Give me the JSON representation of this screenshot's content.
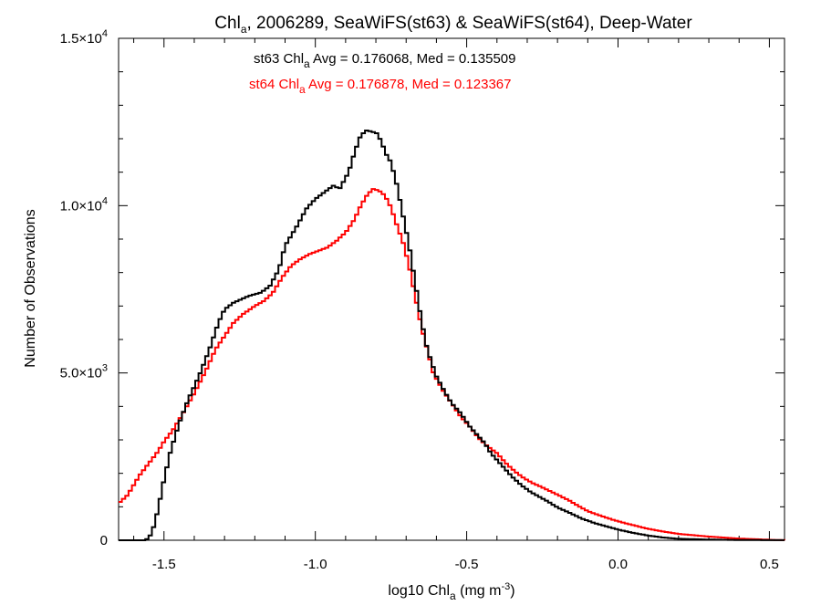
{
  "chart_data": {
    "type": "line",
    "title_parts": [
      "Chl",
      "a",
      ", 2006289, SeaWiFS(st63) & SeaWiFS(st64), Deep-Water"
    ],
    "xlabel_parts": [
      "log10 Chl",
      "a",
      " (mg m",
      "-3",
      ")"
    ],
    "ylabel": "Number of Observations",
    "xlim": [
      -1.65,
      0.55
    ],
    "ylim": [
      0,
      15000
    ],
    "x_ticks": [
      {
        "value": -1.5,
        "label": "-1.5"
      },
      {
        "value": -1.0,
        "label": "-1.0"
      },
      {
        "value": -0.5,
        "label": "-0.5"
      },
      {
        "value": 0.0,
        "label": "0.0"
      },
      {
        "value": 0.5,
        "label": "0.5"
      }
    ],
    "y_ticks": [
      {
        "value": 0,
        "mant": "0",
        "exp": ""
      },
      {
        "value": 5000,
        "mant": "5.0×10",
        "exp": "3"
      },
      {
        "value": 10000,
        "mant": "1.0×10",
        "exp": "4"
      },
      {
        "value": 15000,
        "mant": "1.5×10",
        "exp": "4"
      }
    ],
    "annotations": [
      {
        "parts": [
          "st63 Chl",
          "a",
          " Avg = 0.176068, Med = 0.135509"
        ],
        "color": "#000000"
      },
      {
        "parts": [
          "st64 Chl",
          "a",
          " Avg = 0.176878, Med = 0.123367"
        ],
        "color": "#ff0000"
      }
    ],
    "series": [
      {
        "color": "#000000",
        "x": [
          -1.65,
          -1.56,
          -1.54,
          -1.52,
          -1.5,
          -1.48,
          -1.45,
          -1.42,
          -1.38,
          -1.35,
          -1.32,
          -1.3,
          -1.27,
          -1.22,
          -1.18,
          -1.15,
          -1.12,
          -1.1,
          -1.06,
          -1.03,
          -1.0,
          -0.97,
          -0.94,
          -0.92,
          -0.89,
          -0.87,
          -0.85,
          -0.83,
          -0.81,
          -0.8,
          -0.78,
          -0.77,
          -0.75,
          -0.73,
          -0.71,
          -0.69,
          -0.67,
          -0.65,
          -0.63,
          -0.6,
          -0.57,
          -0.55,
          -0.52,
          -0.49,
          -0.46,
          -0.44,
          -0.42,
          -0.38,
          -0.35,
          -0.32,
          -0.29,
          -0.26,
          -0.23,
          -0.2,
          -0.16,
          -0.12,
          -0.08,
          -0.04,
          0.0,
          0.05,
          0.1,
          0.15,
          0.2,
          0.3,
          0.4,
          0.5,
          0.55
        ],
        "y": [
          0,
          0,
          200,
          900,
          1800,
          2600,
          3500,
          4200,
          5000,
          5700,
          6500,
          6900,
          7100,
          7300,
          7400,
          7600,
          8100,
          8800,
          9400,
          9900,
          10200,
          10400,
          10600,
          10500,
          11000,
          11600,
          12100,
          12250,
          12200,
          12200,
          11900,
          11600,
          11300,
          10600,
          9700,
          8800,
          7700,
          6600,
          5700,
          4900,
          4400,
          4100,
          3800,
          3400,
          3100,
          2900,
          2600,
          2200,
          1900,
          1650,
          1450,
          1300,
          1150,
          980,
          820,
          650,
          520,
          420,
          320,
          220,
          140,
          80,
          45,
          20,
          8,
          3,
          2
        ]
      },
      {
        "color": "#ff0000",
        "x": [
          -1.65,
          -1.62,
          -1.6,
          -1.58,
          -1.55,
          -1.52,
          -1.5,
          -1.47,
          -1.44,
          -1.4,
          -1.36,
          -1.33,
          -1.3,
          -1.27,
          -1.24,
          -1.2,
          -1.17,
          -1.14,
          -1.11,
          -1.08,
          -1.05,
          -1.02,
          -0.99,
          -0.96,
          -0.93,
          -0.9,
          -0.87,
          -0.85,
          -0.83,
          -0.81,
          -0.79,
          -0.77,
          -0.75,
          -0.73,
          -0.71,
          -0.69,
          -0.67,
          -0.65,
          -0.63,
          -0.61,
          -0.58,
          -0.55,
          -0.52,
          -0.49,
          -0.46,
          -0.43,
          -0.4,
          -0.37,
          -0.34,
          -0.31,
          -0.28,
          -0.25,
          -0.22,
          -0.19,
          -0.16,
          -0.13,
          -0.1,
          -0.06,
          -0.02,
          0.02,
          0.06,
          0.1,
          0.15,
          0.2,
          0.3,
          0.4,
          0.5,
          0.55
        ],
        "y": [
          1100,
          1350,
          1650,
          1950,
          2300,
          2650,
          2950,
          3300,
          3750,
          4400,
          5100,
          5700,
          6100,
          6500,
          6750,
          7000,
          7150,
          7400,
          7850,
          8200,
          8400,
          8550,
          8650,
          8750,
          8950,
          9200,
          9600,
          10000,
          10300,
          10500,
          10450,
          10300,
          9950,
          9400,
          8900,
          8200,
          7300,
          6400,
          5700,
          5000,
          4500,
          4100,
          3700,
          3400,
          3050,
          2800,
          2600,
          2300,
          2050,
          1850,
          1700,
          1580,
          1450,
          1320,
          1180,
          1020,
          870,
          740,
          620,
          520,
          430,
          340,
          260,
          190,
          110,
          50,
          15,
          0
        ]
      }
    ]
  }
}
